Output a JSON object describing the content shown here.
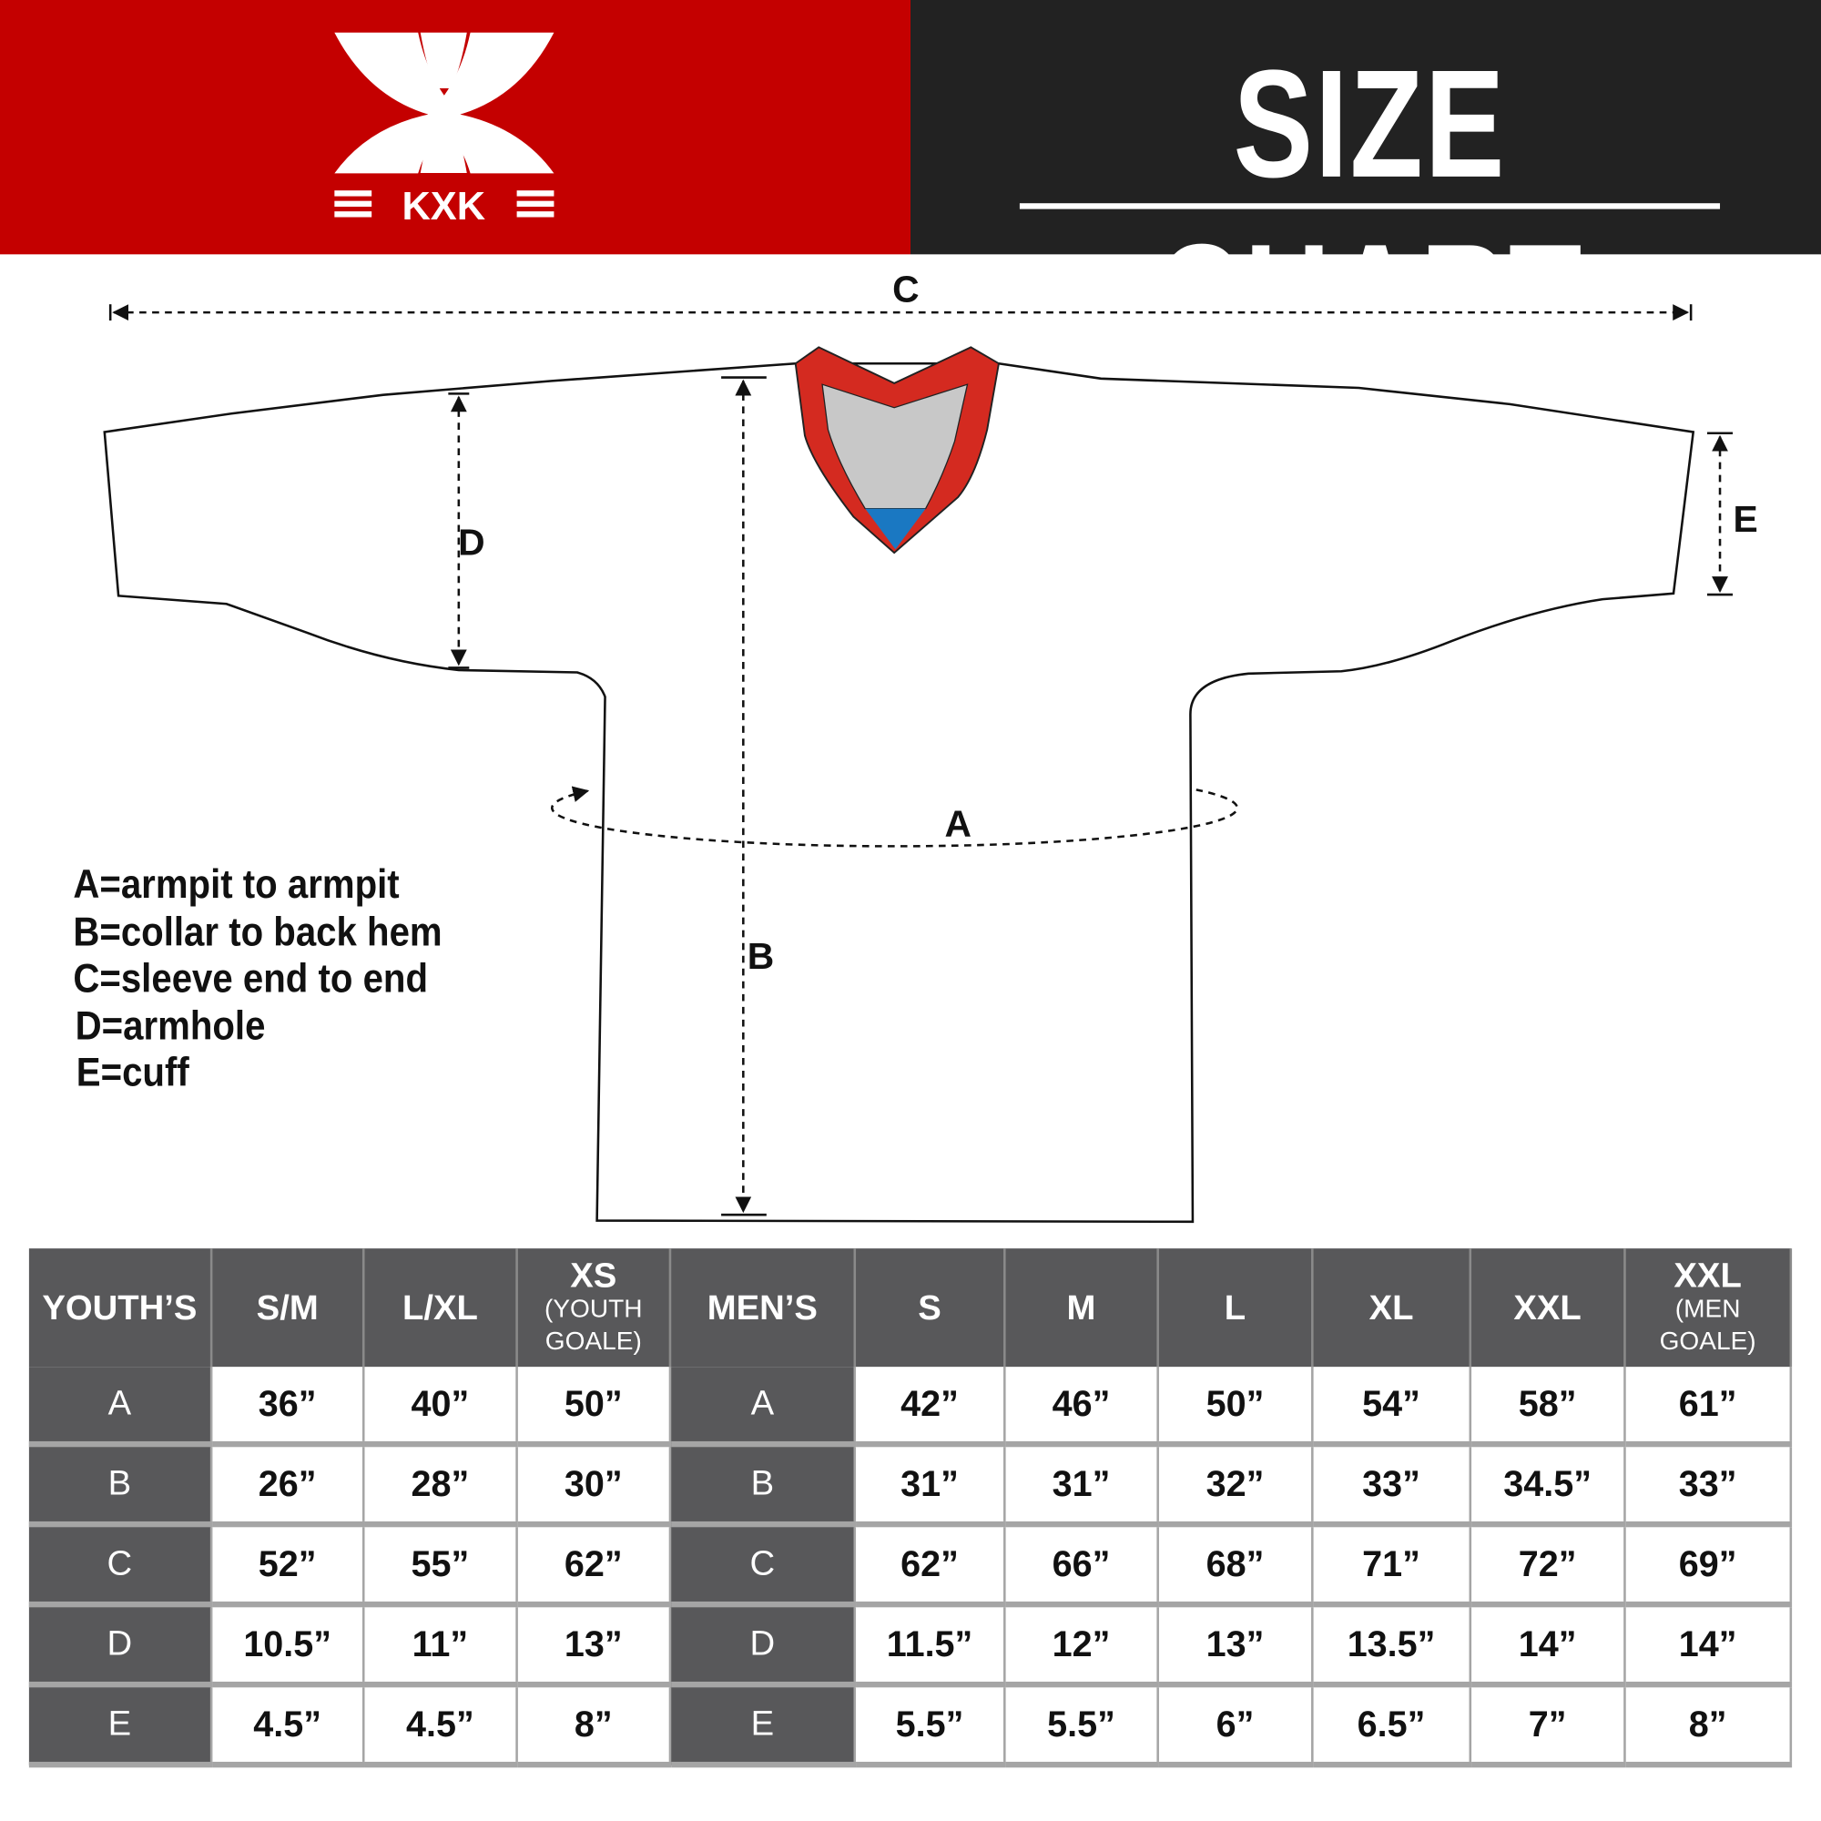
{
  "brand": {
    "logo_text": "KXK",
    "red": "#c40000",
    "dark": "#222222"
  },
  "header": {
    "title": "SIZE CHART"
  },
  "diagram": {
    "labels": {
      "A": "A",
      "B": "B",
      "C": "C",
      "D": "D",
      "E": "E"
    },
    "collar_colors": {
      "trim": "#d42a20",
      "inner": "#c8c8c8",
      "accent": "#1a78c2"
    }
  },
  "legend": [
    "A=armpit to armpit",
    "B=collar to back hem",
    "C=sleeve end to end",
    "D=armhole",
    "E=cuff"
  ],
  "table": {
    "youth_header": "YOUTH’S",
    "youth_sizes": [
      {
        "label": "S/M",
        "sub": ""
      },
      {
        "label": "L/XL",
        "sub": ""
      },
      {
        "label": "XS",
        "sub": "(YOUTH GOALE)"
      }
    ],
    "men_header": "MEN’S",
    "men_sizes": [
      {
        "label": "S",
        "sub": ""
      },
      {
        "label": "M",
        "sub": ""
      },
      {
        "label": "L",
        "sub": ""
      },
      {
        "label": "XL",
        "sub": ""
      },
      {
        "label": "XXL",
        "sub": ""
      },
      {
        "label": "XXL",
        "sub": "(MEN GOALE)"
      }
    ],
    "rows": [
      {
        "label": "A",
        "youth": [
          "36”",
          "40”",
          "50”"
        ],
        "men": [
          "42”",
          "46”",
          "50”",
          "54”",
          "58”",
          "61”"
        ]
      },
      {
        "label": "B",
        "youth": [
          "26”",
          "28”",
          "30”"
        ],
        "men": [
          "31”",
          "31”",
          "32”",
          "33”",
          "34.5”",
          "33”"
        ]
      },
      {
        "label": "C",
        "youth": [
          "52”",
          "55”",
          "62”"
        ],
        "men": [
          "62”",
          "66”",
          "68”",
          "71”",
          "72”",
          "69”"
        ]
      },
      {
        "label": "D",
        "youth": [
          "10.5”",
          "11”",
          "13”"
        ],
        "men": [
          "11.5”",
          "12”",
          "13”",
          "13.5”",
          "14”",
          "14”"
        ]
      },
      {
        "label": "E",
        "youth": [
          "4.5”",
          "4.5”",
          "8”"
        ],
        "men": [
          "5.5”",
          "5.5”",
          "6”",
          "6.5”",
          "7”",
          "8”"
        ]
      }
    ]
  }
}
